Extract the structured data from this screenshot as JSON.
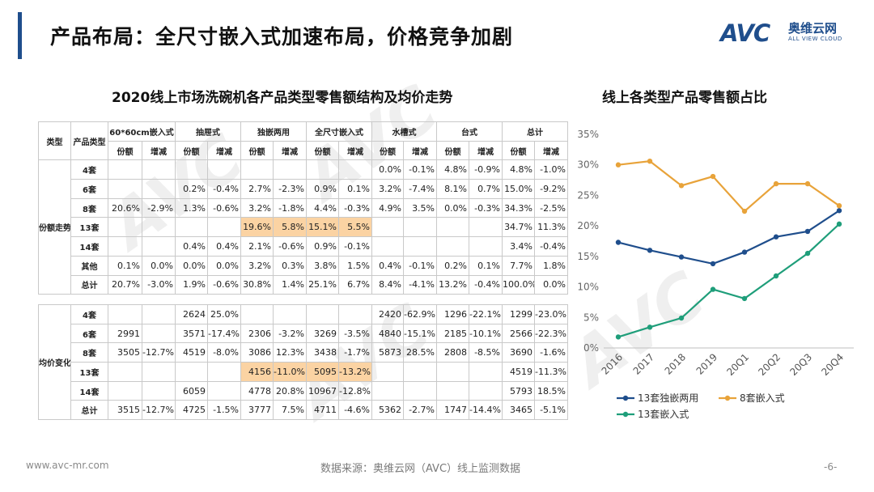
{
  "header": {
    "title": "产品布局：全尺寸嵌入式加速布局，价格竞争加剧"
  },
  "logo": {
    "main": "AVC",
    "cn": "奥维云网",
    "en": "ALL VIEW CLOUD",
    "watermark": "AVC"
  },
  "table": {
    "title": "2020线上市场洗碗机各产品类型零售额结构及均价走势",
    "corner": "类型",
    "size_header": "产品类型",
    "groups": [
      "60*60cm嵌入式",
      "抽屉式",
      "独嵌两用",
      "全尺寸嵌入式",
      "水槽式",
      "台式",
      "总计"
    ],
    "subheaders": [
      "份额",
      "增减"
    ],
    "section1_label": "份额走势",
    "section1_rows": [
      {
        "label": "4套",
        "cells": [
          "",
          "",
          "",
          "",
          "",
          "",
          "",
          "",
          "0.0%",
          "-0.1%",
          "4.8%",
          "-0.9%",
          "4.8%",
          "-1.0%"
        ]
      },
      {
        "label": "6套",
        "cells": [
          "",
          "",
          "0.2%",
          "-0.4%",
          "2.7%",
          "-2.3%",
          "0.9%",
          "0.1%",
          "3.2%",
          "-7.4%",
          "8.1%",
          "0.7%",
          "15.0%",
          "-9.2%"
        ]
      },
      {
        "label": "8套",
        "cells": [
          "20.6%",
          "-2.9%",
          "1.3%",
          "-0.6%",
          "3.2%",
          "-1.8%",
          "4.4%",
          "-0.3%",
          "4.9%",
          "3.5%",
          "0.0%",
          "-0.3%",
          "34.3%",
          "-2.5%"
        ]
      },
      {
        "label": "13套",
        "cells": [
          "",
          "",
          "",
          "",
          "19.6%",
          "5.8%",
          "15.1%",
          "5.5%",
          "",
          "",
          "",
          "",
          "34.7%",
          "11.3%"
        ]
      },
      {
        "label": "14套",
        "cells": [
          "",
          "",
          "0.4%",
          "0.4%",
          "2.1%",
          "-0.6%",
          "0.9%",
          "-0.1%",
          "",
          "",
          "",
          "",
          "3.4%",
          "-0.4%"
        ]
      },
      {
        "label": "其他",
        "cells": [
          "0.1%",
          "0.0%",
          "0.0%",
          "0.0%",
          "3.2%",
          "0.3%",
          "3.8%",
          "1.5%",
          "0.4%",
          "-0.1%",
          "0.2%",
          "0.1%",
          "7.7%",
          "1.8%"
        ]
      },
      {
        "label": "总计",
        "cells": [
          "20.7%",
          "-3.0%",
          "1.9%",
          "-0.6%",
          "30.8%",
          "1.4%",
          "25.1%",
          "6.7%",
          "8.4%",
          "-4.1%",
          "13.2%",
          "-0.4%",
          "100.0%",
          "0.0%"
        ]
      }
    ],
    "section2_label": "均价变化",
    "section2_rows": [
      {
        "label": "4套",
        "cells": [
          "",
          "",
          "2624",
          "25.0%",
          "",
          "",
          "",
          "",
          "2420",
          "-62.9%",
          "1296",
          "-22.1%",
          "1299",
          "-23.0%"
        ]
      },
      {
        "label": "6套",
        "cells": [
          "2991",
          "",
          "3571",
          "-17.4%",
          "2306",
          "-3.2%",
          "3269",
          "-3.5%",
          "4840",
          "-15.1%",
          "2185",
          "-10.1%",
          "2566",
          "-22.3%"
        ]
      },
      {
        "label": "8套",
        "cells": [
          "3505",
          "-12.7%",
          "4519",
          "-8.0%",
          "3086",
          "12.3%",
          "3438",
          "-1.7%",
          "5873",
          "28.5%",
          "2808",
          "-8.5%",
          "3690",
          "-1.6%"
        ]
      },
      {
        "label": "13套",
        "cells": [
          "",
          "",
          "",
          "",
          "4156",
          "-11.0%",
          "5095",
          "-13.2%",
          "",
          "",
          "",
          "",
          "4519",
          "-11.3%"
        ]
      },
      {
        "label": "14套",
        "cells": [
          "",
          "",
          "6059",
          "",
          "4778",
          "20.8%",
          "10967",
          "-12.8%",
          "",
          "",
          "",
          "",
          "5793",
          "18.5%"
        ]
      },
      {
        "label": "总计",
        "cells": [
          "3515",
          "-12.7%",
          "4725",
          "-1.5%",
          "3777",
          "7.5%",
          "4711",
          "-4.6%",
          "5362",
          "-2.7%",
          "1747",
          "-14.4%",
          "3465",
          "-5.1%"
        ]
      }
    ],
    "highlight_color": "#fbd3a3"
  },
  "chart_data": {
    "type": "line",
    "title": "线上各类型产品零售额占比",
    "x": [
      "2016",
      "2017",
      "2018",
      "2019",
      "20Q1",
      "20Q2",
      "20Q3",
      "20Q4"
    ],
    "series": [
      {
        "name": "13套独嵌两用",
        "color": "#1f4e8c",
        "values": [
          17.3,
          16.0,
          14.9,
          13.8,
          15.7,
          18.2,
          19.1,
          22.5
        ]
      },
      {
        "name": "8套嵌入式",
        "color": "#e8a33a",
        "values": [
          30.0,
          30.6,
          26.6,
          28.1,
          22.4,
          26.9,
          26.9,
          23.3
        ]
      },
      {
        "name": "13套嵌入式",
        "color": "#1f9e7a",
        "values": [
          1.8,
          3.4,
          4.9,
          9.6,
          8.1,
          11.8,
          15.5,
          20.3
        ]
      }
    ],
    "ylim": [
      0,
      35
    ],
    "ytick_step": 5,
    "y_unit": "%",
    "grid": false,
    "legend_position": "bottom"
  },
  "footer": {
    "url": "www.avc-mr.com",
    "source": "数据来源：奥维云网（AVC）线上监测数据",
    "page": "-6-"
  }
}
